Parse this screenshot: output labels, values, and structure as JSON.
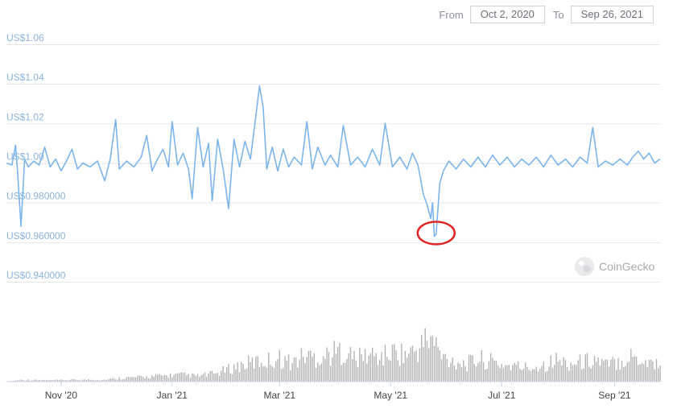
{
  "range": {
    "from_label": "From",
    "from_value": "Oct 2, 2020",
    "to_label": "To",
    "to_value": "Sep 26, 2021"
  },
  "watermark": "CoinGecko",
  "colors": {
    "line": "#7cb5ec",
    "volume": "#b4b4b4",
    "highlight": "#e02020",
    "grid": "#e6e6e6"
  },
  "chart_data": {
    "type": "line",
    "title": "",
    "xlabel": "",
    "ylabel": "",
    "ylim": [
      0.94,
      1.06
    ],
    "y_ticks": [
      {
        "value": 1.06,
        "label": "US$1.06"
      },
      {
        "value": 1.04,
        "label": "US$1.04"
      },
      {
        "value": 1.02,
        "label": "US$1.02"
      },
      {
        "value": 1.0,
        "label": "US$1.00"
      },
      {
        "value": 0.98,
        "label": "US$0.980000"
      },
      {
        "value": 0.96,
        "label": "US$0.960000"
      },
      {
        "value": 0.94,
        "label": "US$0.940000"
      }
    ],
    "x_ticks": [
      {
        "date": "2020-11-01",
        "label": "Nov '20"
      },
      {
        "date": "2021-01-01",
        "label": "Jan '21"
      },
      {
        "date": "2021-03-01",
        "label": "Mar '21"
      },
      {
        "date": "2021-05-01",
        "label": "May '21"
      },
      {
        "date": "2021-07-01",
        "label": "Jul '21"
      },
      {
        "date": "2021-09-01",
        "label": "Sep '21"
      }
    ],
    "series": [
      {
        "points": [
          [
            "2020-10-02",
            1.0
          ],
          [
            "2020-10-05",
            0.999
          ],
          [
            "2020-10-07",
            1.009
          ],
          [
            "2020-10-08",
            0.997
          ],
          [
            "2020-10-10",
            0.968
          ],
          [
            "2020-10-12",
            1.002
          ],
          [
            "2020-10-14",
            0.998
          ],
          [
            "2020-10-17",
            1.001
          ],
          [
            "2020-10-20",
            0.999
          ],
          [
            "2020-10-23",
            1.008
          ],
          [
            "2020-10-26",
            0.998
          ],
          [
            "2020-10-29",
            1.002
          ],
          [
            "2020-11-01",
            0.996
          ],
          [
            "2020-11-04",
            1.001
          ],
          [
            "2020-11-07",
            1.007
          ],
          [
            "2020-11-10",
            0.997
          ],
          [
            "2020-11-13",
            1.0
          ],
          [
            "2020-11-17",
            0.998
          ],
          [
            "2020-11-21",
            1.001
          ],
          [
            "2020-11-25",
            0.991
          ],
          [
            "2020-11-28",
            1.002
          ],
          [
            "2020-12-01",
            1.022
          ],
          [
            "2020-12-03",
            0.997
          ],
          [
            "2020-12-07",
            1.001
          ],
          [
            "2020-12-11",
            0.998
          ],
          [
            "2020-12-15",
            1.003
          ],
          [
            "2020-12-18",
            1.014
          ],
          [
            "2020-12-21",
            0.996
          ],
          [
            "2020-12-24",
            1.002
          ],
          [
            "2020-12-27",
            1.007
          ],
          [
            "2020-12-30",
            0.998
          ],
          [
            "2021-01-01",
            1.021
          ],
          [
            "2021-01-04",
            0.999
          ],
          [
            "2021-01-07",
            1.005
          ],
          [
            "2021-01-10",
            0.997
          ],
          [
            "2021-01-12",
            0.982
          ],
          [
            "2021-01-15",
            1.018
          ],
          [
            "2021-01-18",
            0.998
          ],
          [
            "2021-01-21",
            1.01
          ],
          [
            "2021-01-23",
            0.981
          ],
          [
            "2021-01-26",
            1.012
          ],
          [
            "2021-01-29",
            0.997
          ],
          [
            "2021-02-01",
            0.977
          ],
          [
            "2021-02-04",
            1.012
          ],
          [
            "2021-02-07",
            0.998
          ],
          [
            "2021-02-10",
            1.011
          ],
          [
            "2021-02-13",
            1.002
          ],
          [
            "2021-02-16",
            1.024
          ],
          [
            "2021-02-18",
            1.039
          ],
          [
            "2021-02-20",
            1.028
          ],
          [
            "2021-02-22",
            0.997
          ],
          [
            "2021-02-25",
            1.008
          ],
          [
            "2021-02-28",
            0.996
          ],
          [
            "2021-03-03",
            1.007
          ],
          [
            "2021-03-06",
            0.998
          ],
          [
            "2021-03-09",
            1.003
          ],
          [
            "2021-03-13",
            0.999
          ],
          [
            "2021-03-16",
            1.021
          ],
          [
            "2021-03-19",
            0.997
          ],
          [
            "2021-03-22",
            1.008
          ],
          [
            "2021-03-26",
            0.999
          ],
          [
            "2021-03-29",
            1.004
          ],
          [
            "2021-04-02",
            0.998
          ],
          [
            "2021-04-05",
            1.019
          ],
          [
            "2021-04-09",
            0.999
          ],
          [
            "2021-04-13",
            1.003
          ],
          [
            "2021-04-17",
            0.998
          ],
          [
            "2021-04-21",
            1.007
          ],
          [
            "2021-04-25",
            0.999
          ],
          [
            "2021-04-28",
            1.02
          ],
          [
            "2021-05-02",
            0.998
          ],
          [
            "2021-05-06",
            1.003
          ],
          [
            "2021-05-10",
            0.997
          ],
          [
            "2021-05-13",
            1.005
          ],
          [
            "2021-05-16",
            0.999
          ],
          [
            "2021-05-19",
            0.984
          ],
          [
            "2021-05-21",
            0.979
          ],
          [
            "2021-05-23",
            0.972
          ],
          [
            "2021-05-24",
            0.98
          ],
          [
            "2021-05-25",
            0.963
          ],
          [
            "2021-05-26",
            0.964
          ],
          [
            "2021-05-28",
            0.99
          ],
          [
            "2021-05-30",
            0.996
          ],
          [
            "2021-06-02",
            1.001
          ],
          [
            "2021-06-06",
            0.997
          ],
          [
            "2021-06-10",
            1.002
          ],
          [
            "2021-06-14",
            0.998
          ],
          [
            "2021-06-18",
            1.003
          ],
          [
            "2021-06-22",
            0.998
          ],
          [
            "2021-06-26",
            1.004
          ],
          [
            "2021-06-30",
            0.999
          ],
          [
            "2021-07-04",
            1.003
          ],
          [
            "2021-07-08",
            0.998
          ],
          [
            "2021-07-12",
            1.002
          ],
          [
            "2021-07-16",
            0.999
          ],
          [
            "2021-07-20",
            1.003
          ],
          [
            "2021-07-24",
            0.998
          ],
          [
            "2021-07-28",
            1.004
          ],
          [
            "2021-08-01",
            0.999
          ],
          [
            "2021-08-05",
            1.002
          ],
          [
            "2021-08-09",
            0.998
          ],
          [
            "2021-08-13",
            1.003
          ],
          [
            "2021-08-17",
            1.0
          ],
          [
            "2021-08-20",
            1.018
          ],
          [
            "2021-08-23",
            0.998
          ],
          [
            "2021-08-27",
            1.001
          ],
          [
            "2021-08-31",
            0.999
          ],
          [
            "2021-09-04",
            1.002
          ],
          [
            "2021-09-08",
            0.999
          ],
          [
            "2021-09-11",
            1.003
          ],
          [
            "2021-09-14",
            1.006
          ],
          [
            "2021-09-17",
            1.002
          ],
          [
            "2021-09-20",
            1.005
          ],
          [
            "2021-09-23",
            1.0
          ],
          [
            "2021-09-26",
            1.002
          ]
        ]
      }
    ],
    "volume": [
      [
        "2020-10-10",
        0.3
      ],
      [
        "2020-10-25",
        0.2
      ],
      [
        "2020-11-10",
        0.3
      ],
      [
        "2020-11-25",
        0.3
      ],
      [
        "2020-12-05",
        0.6
      ],
      [
        "2020-12-15",
        0.7
      ],
      [
        "2020-12-25",
        0.9
      ],
      [
        "2021-01-05",
        1.1
      ],
      [
        "2021-01-15",
        0.9
      ],
      [
        "2021-01-25",
        1.3
      ],
      [
        "2021-02-01",
        2.0
      ],
      [
        "2021-02-08",
        2.6
      ],
      [
        "2021-02-15",
        3.1
      ],
      [
        "2021-02-22",
        3.3
      ],
      [
        "2021-03-01",
        3.7
      ],
      [
        "2021-03-08",
        3.0
      ],
      [
        "2021-03-15",
        4.2
      ],
      [
        "2021-03-22",
        3.8
      ],
      [
        "2021-03-29",
        4.4
      ],
      [
        "2021-04-05",
        4.9
      ],
      [
        "2021-04-12",
        3.6
      ],
      [
        "2021-04-19",
        4.3
      ],
      [
        "2021-04-26",
        3.9
      ],
      [
        "2021-05-03",
        4.7
      ],
      [
        "2021-05-10",
        4.3
      ],
      [
        "2021-05-17",
        5.3
      ],
      [
        "2021-05-21",
        6.9
      ],
      [
        "2021-05-25",
        6.3
      ],
      [
        "2021-05-29",
        3.9
      ],
      [
        "2021-06-05",
        3.3
      ],
      [
        "2021-06-12",
        2.8
      ],
      [
        "2021-06-19",
        3.6
      ],
      [
        "2021-06-26",
        3.1
      ],
      [
        "2021-07-03",
        2.6
      ],
      [
        "2021-07-10",
        2.4
      ],
      [
        "2021-07-17",
        2.2
      ],
      [
        "2021-07-24",
        2.7
      ],
      [
        "2021-07-31",
        3.4
      ],
      [
        "2021-08-07",
        2.9
      ],
      [
        "2021-08-14",
        3.1
      ],
      [
        "2021-08-21",
        3.6
      ],
      [
        "2021-08-28",
        2.6
      ],
      [
        "2021-09-04",
        3.4
      ],
      [
        "2021-09-11",
        4.1
      ],
      [
        "2021-09-18",
        3.2
      ],
      [
        "2021-09-26",
        2.9
      ]
    ],
    "annotation": {
      "type": "circle",
      "date": "2021-05-26",
      "value": 0.963
    },
    "grid": true,
    "legend": "none"
  }
}
